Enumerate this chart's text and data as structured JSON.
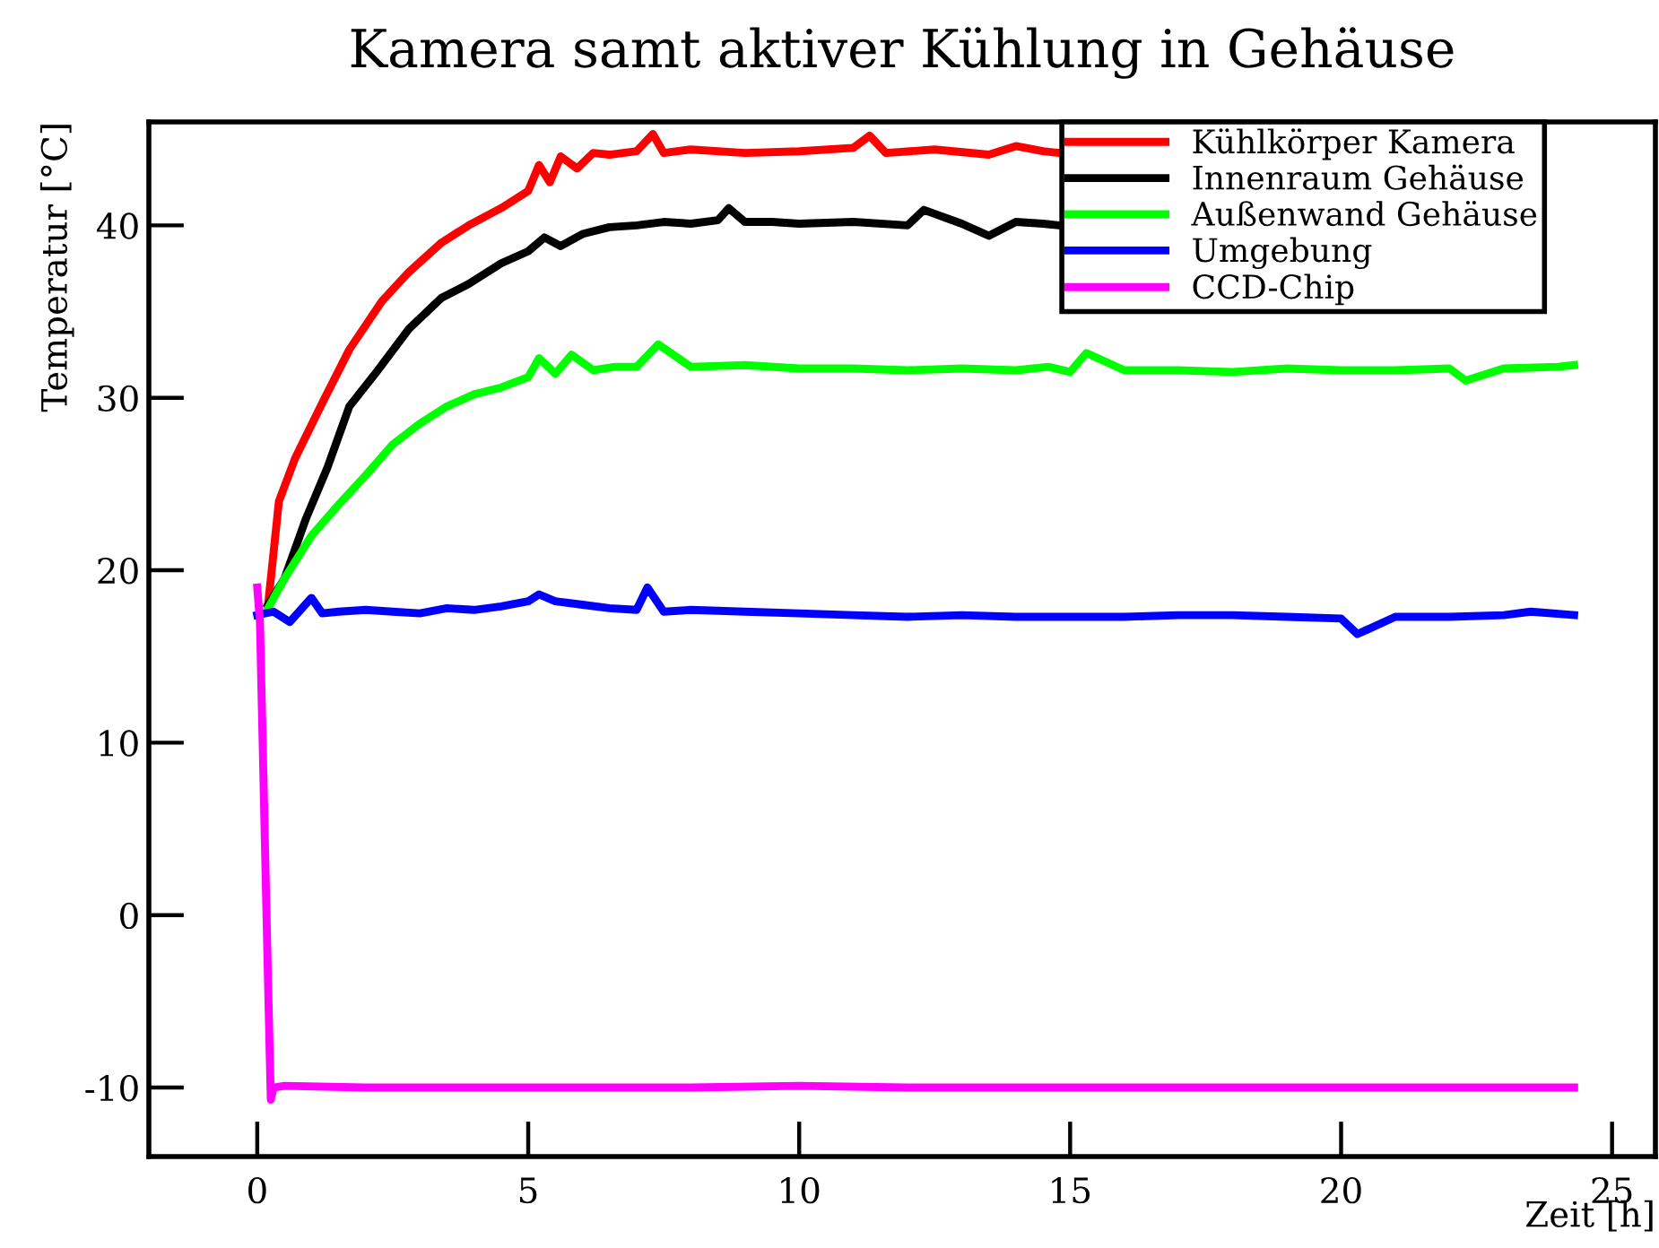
{
  "chart_data": {
    "type": "line",
    "title": "Kamera samt aktiver Kühlung in Gehäuse",
    "xlabel": "Zeit [h]",
    "ylabel": "Temperatur [°C]",
    "xlim": [
      -2,
      25.8
    ],
    "ylim": [
      -14,
      46
    ],
    "xticks": [
      0,
      5,
      10,
      15,
      20,
      25
    ],
    "yticks": [
      {
        "value": -10,
        "label": "-10"
      },
      0,
      10,
      20,
      30,
      40
    ],
    "grid": false,
    "legend": "top right",
    "marker": "none",
    "line_style": "solid",
    "series": [
      {
        "name": "Kühlkörper Kamera",
        "color": "#ff0000",
        "x": [
          0.2,
          0.4,
          0.7,
          1.2,
          1.7,
          2.3,
          2.8,
          3.4,
          3.9,
          4.5,
          5.0,
          5.2,
          5.4,
          5.6,
          5.9,
          6.2,
          6.5,
          7.0,
          7.3,
          7.5,
          8,
          9,
          10,
          11,
          11.3,
          11.6,
          12.5,
          13.5,
          14,
          14.5,
          14.8
        ],
        "values": [
          18,
          24,
          26.5,
          29.7,
          32.8,
          35.6,
          37.3,
          39,
          40,
          41,
          42,
          43.5,
          42.5,
          44,
          43.3,
          44.2,
          44.1,
          44.3,
          45.3,
          44.2,
          44.4,
          44.2,
          44.3,
          44.5,
          45.2,
          44.2,
          44.4,
          44.1,
          44.6,
          44.3,
          44.2
        ]
      },
      {
        "name": "Innenraum Gehäuse",
        "color": "#000000",
        "x": [
          0.2,
          0.5,
          0.9,
          1.3,
          1.7,
          2.2,
          2.8,
          3.4,
          3.9,
          4.5,
          5.0,
          5.3,
          5.6,
          6.0,
          6.5,
          7.0,
          7.5,
          8,
          8.5,
          8.7,
          9,
          9.5,
          10,
          11,
          12,
          12.3,
          13,
          13.5,
          14,
          14.5,
          14.8
        ],
        "values": [
          18,
          19.5,
          23,
          26,
          29.5,
          31.5,
          34,
          35.8,
          36.6,
          37.8,
          38.5,
          39.3,
          38.8,
          39.5,
          39.9,
          40.0,
          40.2,
          40.1,
          40.3,
          41,
          40.2,
          40.2,
          40.1,
          40.2,
          40,
          40.9,
          40.1,
          39.4,
          40.2,
          40.1,
          40.0
        ]
      },
      {
        "name": "Außenwand Gehäuse",
        "color": "#00ff00",
        "x": [
          0.2,
          0.5,
          1.0,
          1.5,
          2.0,
          2.5,
          3.0,
          3.5,
          4.0,
          4.5,
          5.0,
          5.2,
          5.5,
          5.8,
          6.2,
          6.6,
          7.0,
          7.4,
          8,
          9,
          10,
          11,
          12,
          13,
          14,
          14.6,
          15,
          15.3,
          16,
          17,
          18,
          19,
          20,
          21,
          22,
          22.3,
          23,
          24,
          24.3
        ],
        "values": [
          17.8,
          19.5,
          22,
          23.8,
          25.5,
          27.3,
          28.5,
          29.5,
          30.2,
          30.6,
          31.2,
          32.3,
          31.4,
          32.5,
          31.6,
          31.8,
          31.8,
          33.1,
          31.8,
          31.9,
          31.7,
          31.7,
          31.6,
          31.7,
          31.6,
          31.8,
          31.5,
          32.6,
          31.6,
          31.6,
          31.5,
          31.7,
          31.6,
          31.6,
          31.7,
          31.0,
          31.7,
          31.8,
          31.9
        ]
      },
      {
        "name": "Umgebung",
        "color": "#0000ff",
        "x": [
          0,
          0.3,
          0.6,
          1.0,
          1.2,
          1.5,
          2,
          2.5,
          3,
          3.5,
          4,
          4.5,
          5,
          5.2,
          5.5,
          6,
          6.5,
          7,
          7.2,
          7.5,
          8,
          9,
          10,
          11,
          12,
          13,
          14,
          15,
          16,
          17,
          18,
          19,
          20,
          20.3,
          21,
          22,
          23,
          23.5,
          24.3
        ],
        "values": [
          17.4,
          17.6,
          17.0,
          18.4,
          17.5,
          17.6,
          17.7,
          17.6,
          17.5,
          17.8,
          17.7,
          17.9,
          18.2,
          18.6,
          18.2,
          18.0,
          17.8,
          17.7,
          19.0,
          17.6,
          17.7,
          17.6,
          17.5,
          17.4,
          17.3,
          17.4,
          17.3,
          17.3,
          17.3,
          17.4,
          17.4,
          17.3,
          17.2,
          16.3,
          17.3,
          17.3,
          17.4,
          17.6,
          17.4
        ]
      },
      {
        "name": "CCD-Chip",
        "color": "#ff00ff",
        "x": [
          0,
          0.05,
          0.2,
          0.25,
          0.3,
          0.5,
          2,
          5,
          8,
          10,
          12,
          14,
          16,
          18,
          20,
          22,
          24.3
        ],
        "values": [
          19,
          17,
          -4,
          -10.7,
          -10,
          -9.9,
          -10,
          -10,
          -10,
          -9.9,
          -10,
          -10,
          -10,
          -10,
          -10,
          -10,
          -10
        ]
      }
    ]
  }
}
